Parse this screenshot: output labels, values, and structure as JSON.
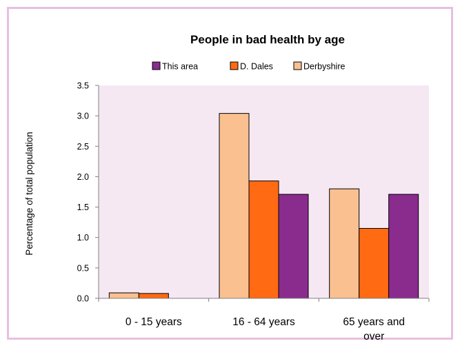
{
  "colors": {
    "page_border": "#e6c0e0",
    "plot_bg": "#f5e8f3",
    "axis": "#7f7f7f",
    "bar_stroke": "#000000"
  },
  "chart_data": {
    "type": "bar",
    "title": "People in bad health by age",
    "xlabel": "",
    "ylabel": "Percentage of total population",
    "ylim": [
      0,
      3.5
    ],
    "y_ticks": [
      0.0,
      0.5,
      1.0,
      1.5,
      2.0,
      2.5,
      3.0,
      3.5
    ],
    "y_tick_labels": [
      "0.0",
      "0.5",
      "1.0",
      "1.5",
      "2.0",
      "2.5",
      "3.0",
      "3.5"
    ],
    "grid": false,
    "legend_position": "top",
    "categories": [
      [
        "0 - 15 years"
      ],
      [
        "16 - 64 years"
      ],
      [
        "65 years and",
        "over"
      ]
    ],
    "legend_order": [
      "This area",
      "D. Dales",
      "Derbyshire"
    ],
    "series": [
      {
        "name": "Derbyshire",
        "color": "#fac090",
        "values": [
          0.09,
          3.04,
          1.8
        ]
      },
      {
        "name": "D. Dales",
        "color": "#ff6a13",
        "values": [
          0.08,
          1.93,
          1.15
        ]
      },
      {
        "name": "This area",
        "color": "#8a2b8e",
        "values": [
          0.0,
          1.71,
          1.71
        ]
      }
    ]
  }
}
